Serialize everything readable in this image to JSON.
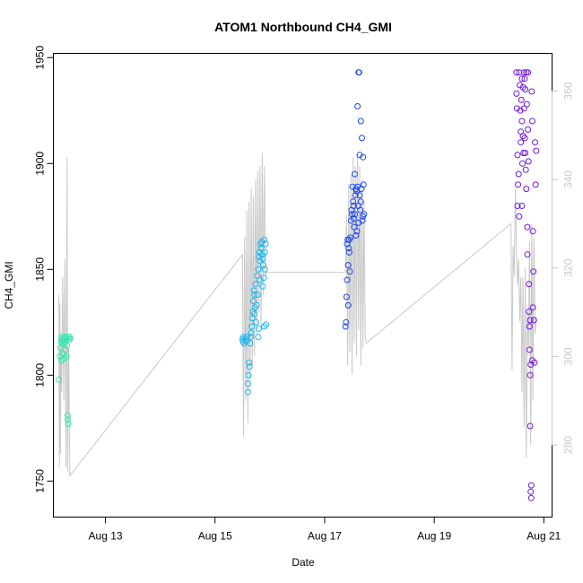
{
  "chart_data": {
    "type": "scatter",
    "title": "ATOM1 Northbound CH4_GMI",
    "xlabel": "Date",
    "ylabel": "CH4_GMI",
    "x_unit": "date (August 2016)",
    "xlim": [
      "Aug 12.05",
      "Aug 21.15"
    ],
    "ylim": [
      1733,
      1952
    ],
    "x_ticks": [
      {
        "value": 13,
        "label": "Aug 13"
      },
      {
        "value": 15,
        "label": "Aug 15"
      },
      {
        "value": 17,
        "label": "Aug 17"
      },
      {
        "value": 19,
        "label": "Aug 19"
      },
      {
        "value": 21,
        "label": "Aug 21"
      }
    ],
    "y_ticks": [
      1750,
      1800,
      1850,
      1900,
      1950
    ],
    "right_axis": {
      "ticks": [
        280,
        300,
        320,
        340,
        360
      ],
      "range": [
        263.7,
        368.5
      ],
      "color": "#c8c8c8"
    },
    "grid": false,
    "legend": "none",
    "colors": {
      "flight1": "#2fe8b0",
      "flight2": "#19b7ef",
      "flight3": "#1c46f0",
      "flight4": "#7118dc",
      "secondary_line": "#c8c8c8"
    },
    "series": [
      {
        "color": "#2fe8b0",
        "points": [
          [
            12.15,
            1798
          ],
          [
            12.17,
            1809
          ],
          [
            12.18,
            1813
          ],
          [
            12.19,
            1816
          ],
          [
            12.2,
            1818
          ],
          [
            12.21,
            1817
          ],
          [
            12.22,
            1815
          ],
          [
            12.23,
            1810
          ],
          [
            12.24,
            1816
          ],
          [
            12.25,
            1815
          ],
          [
            12.26,
            1818
          ],
          [
            12.27,
            1812
          ],
          [
            12.28,
            1817
          ],
          [
            12.29,
            1809
          ],
          [
            12.3,
            1818
          ],
          [
            12.3,
            1814
          ],
          [
            12.31,
            1781
          ],
          [
            12.31,
            1779
          ],
          [
            12.32,
            1777
          ],
          [
            12.33,
            1817
          ],
          [
            12.34,
            1818
          ],
          [
            12.35,
            1818
          ],
          [
            12.36,
            1817
          ],
          [
            12.2,
            1807
          ],
          [
            12.25,
            1808
          ]
        ]
      },
      {
        "color": "#19b7ef",
        "points": [
          [
            15.5,
            1817
          ],
          [
            15.51,
            1816
          ],
          [
            15.52,
            1818
          ],
          [
            15.53,
            1815
          ],
          [
            15.55,
            1817
          ],
          [
            15.57,
            1816
          ],
          [
            15.58,
            1818
          ],
          [
            15.6,
            1792
          ],
          [
            15.6,
            1796
          ],
          [
            15.61,
            1800
          ],
          [
            15.62,
            1806
          ],
          [
            15.63,
            1804
          ],
          [
            15.64,
            1815
          ],
          [
            15.65,
            1818
          ],
          [
            15.66,
            1820
          ],
          [
            15.67,
            1823
          ],
          [
            15.68,
            1827
          ],
          [
            15.69,
            1830
          ],
          [
            15.7,
            1835
          ],
          [
            15.71,
            1840
          ],
          [
            15.72,
            1838
          ],
          [
            15.72,
            1829
          ],
          [
            15.73,
            1832
          ],
          [
            15.74,
            1843
          ],
          [
            15.75,
            1825
          ],
          [
            15.76,
            1833
          ],
          [
            15.77,
            1847
          ],
          [
            15.78,
            1838
          ],
          [
            15.79,
            1850
          ],
          [
            15.79,
            1818
          ],
          [
            15.8,
            1856
          ],
          [
            15.8,
            1822
          ],
          [
            15.81,
            1858
          ],
          [
            15.82,
            1854
          ],
          [
            15.82,
            1845
          ],
          [
            15.83,
            1862
          ],
          [
            15.84,
            1860
          ],
          [
            15.85,
            1863
          ],
          [
            15.86,
            1857
          ],
          [
            15.87,
            1855
          ],
          [
            15.87,
            1842
          ],
          [
            15.88,
            1852
          ],
          [
            15.89,
            1846
          ],
          [
            15.9,
            1864
          ],
          [
            15.9,
            1823
          ],
          [
            15.91,
            1850
          ],
          [
            15.91,
            1858
          ],
          [
            15.92,
            1862
          ],
          [
            15.93,
            1824
          ]
        ]
      },
      {
        "color": "#1c46f0",
        "points": [
          [
            17.38,
            1823
          ],
          [
            17.39,
            1825
          ],
          [
            17.4,
            1837
          ],
          [
            17.41,
            1845
          ],
          [
            17.41,
            1862
          ],
          [
            17.42,
            1864
          ],
          [
            17.43,
            1852
          ],
          [
            17.43,
            1833
          ],
          [
            17.44,
            1860
          ],
          [
            17.45,
            1864
          ],
          [
            17.45,
            1858
          ],
          [
            17.46,
            1849
          ],
          [
            17.47,
            1865
          ],
          [
            17.48,
            1873
          ],
          [
            17.49,
            1878
          ],
          [
            17.5,
            1876
          ],
          [
            17.51,
            1889
          ],
          [
            17.52,
            1882
          ],
          [
            17.53,
            1874
          ],
          [
            17.54,
            1870
          ],
          [
            17.55,
            1876
          ],
          [
            17.56,
            1885
          ],
          [
            17.57,
            1888
          ],
          [
            17.57,
            1866
          ],
          [
            17.58,
            1887
          ],
          [
            17.59,
            1868
          ],
          [
            17.6,
            1889
          ],
          [
            17.61,
            1880
          ],
          [
            17.62,
            1872
          ],
          [
            17.62,
            1943
          ],
          [
            17.63,
            1943
          ],
          [
            17.64,
            1885
          ],
          [
            17.65,
            1878
          ],
          [
            17.66,
            1920
          ],
          [
            17.66,
            1882
          ],
          [
            17.67,
            1888
          ],
          [
            17.68,
            1912
          ],
          [
            17.69,
            1873
          ],
          [
            17.7,
            1875
          ],
          [
            17.7,
            1903
          ],
          [
            17.71,
            1890
          ],
          [
            17.72,
            1876
          ],
          [
            17.53,
            1880
          ],
          [
            17.55,
            1895
          ],
          [
            17.6,
            1927
          ],
          [
            17.64,
            1904
          ]
        ]
      },
      {
        "color": "#7118dc",
        "points": [
          [
            20.5,
            1943
          ],
          [
            20.5,
            1933
          ],
          [
            20.51,
            1926
          ],
          [
            20.52,
            1904
          ],
          [
            20.52,
            1880
          ],
          [
            20.53,
            1890
          ],
          [
            20.54,
            1895
          ],
          [
            20.55,
            1875
          ],
          [
            20.55,
            1943
          ],
          [
            20.56,
            1937
          ],
          [
            20.57,
            1925
          ],
          [
            20.58,
            1910
          ],
          [
            20.58,
            1915
          ],
          [
            20.59,
            1930
          ],
          [
            20.6,
            1920
          ],
          [
            20.6,
            1940
          ],
          [
            20.61,
            1900
          ],
          [
            20.62,
            1913
          ],
          [
            20.62,
            1936
          ],
          [
            20.63,
            1905
          ],
          [
            20.64,
            1926
          ],
          [
            20.64,
            1943
          ],
          [
            20.65,
            1940
          ],
          [
            20.66,
            1935
          ],
          [
            20.66,
            1905
          ],
          [
            20.67,
            1897
          ],
          [
            20.68,
            1888
          ],
          [
            20.68,
            1943
          ],
          [
            20.69,
            1928
          ],
          [
            20.7,
            1870
          ],
          [
            20.7,
            1857
          ],
          [
            20.71,
            1916
          ],
          [
            20.71,
            1943
          ],
          [
            20.72,
            1901
          ],
          [
            20.73,
            1830
          ],
          [
            20.73,
            1843
          ],
          [
            20.74,
            1823
          ],
          [
            20.74,
            1812
          ],
          [
            20.75,
            1800
          ],
          [
            20.75,
            1776
          ],
          [
            20.76,
            1805
          ],
          [
            20.76,
            1745
          ],
          [
            20.77,
            1748
          ],
          [
            20.77,
            1742
          ],
          [
            20.78,
            1934
          ],
          [
            20.79,
            1920
          ],
          [
            20.8,
            1868
          ],
          [
            20.8,
            1832
          ],
          [
            20.81,
            1849
          ],
          [
            20.82,
            1826
          ],
          [
            20.83,
            1806
          ],
          [
            20.84,
            1910
          ],
          [
            20.85,
            1890
          ],
          [
            20.86,
            1906
          ],
          [
            20.6,
            1880
          ],
          [
            20.65,
            1912
          ],
          [
            20.75,
            1826
          ],
          [
            20.79,
            1807
          ]
        ]
      }
    ],
    "secondary_series": {
      "color": "#c8c8c8",
      "points": [
        [
          12.15,
          314
        ],
        [
          12.16,
          275
        ],
        [
          12.17,
          312
        ],
        [
          12.18,
          278
        ],
        [
          12.19,
          305
        ],
        [
          12.2,
          292
        ],
        [
          12.22,
          318
        ],
        [
          12.24,
          290
        ],
        [
          12.26,
          322
        ],
        [
          12.28,
          275
        ],
        [
          12.3,
          345
        ],
        [
          12.31,
          274
        ],
        [
          12.33,
          302
        ],
        [
          12.35,
          273
        ],
        [
          15.5,
          323
        ],
        [
          15.52,
          282
        ],
        [
          15.54,
          327
        ],
        [
          15.56,
          290
        ],
        [
          15.58,
          333
        ],
        [
          15.6,
          285
        ],
        [
          15.62,
          335
        ],
        [
          15.64,
          292
        ],
        [
          15.66,
          338
        ],
        [
          15.68,
          298
        ],
        [
          15.7,
          336
        ],
        [
          15.72,
          300
        ],
        [
          15.74,
          340
        ],
        [
          15.76,
          305
        ],
        [
          15.78,
          342
        ],
        [
          15.8,
          310
        ],
        [
          15.82,
          343
        ],
        [
          15.84,
          306
        ],
        [
          15.86,
          346
        ],
        [
          15.88,
          314
        ],
        [
          15.9,
          343
        ],
        [
          15.92,
          318
        ],
        [
          15.94,
          319
        ],
        [
          17.38,
          319
        ],
        [
          17.4,
          332
        ],
        [
          17.42,
          298
        ],
        [
          17.44,
          339
        ],
        [
          17.46,
          301
        ],
        [
          17.48,
          341
        ],
        [
          17.5,
          296
        ],
        [
          17.52,
          345
        ],
        [
          17.54,
          303
        ],
        [
          17.56,
          343
        ],
        [
          17.58,
          300
        ],
        [
          17.6,
          346
        ],
        [
          17.62,
          306
        ],
        [
          17.64,
          343
        ],
        [
          17.66,
          298
        ],
        [
          17.68,
          340
        ],
        [
          17.7,
          302
        ],
        [
          17.72,
          335
        ],
        [
          17.74,
          305
        ],
        [
          17.76,
          303
        ],
        [
          20.4,
          330
        ],
        [
          20.42,
          297
        ],
        [
          20.44,
          325
        ],
        [
          20.46,
          318
        ],
        [
          20.48,
          338
        ],
        [
          20.5,
          324
        ],
        [
          20.52,
          316
        ],
        [
          20.54,
          322
        ],
        [
          20.56,
          308
        ],
        [
          20.58,
          318
        ],
        [
          20.6,
          292
        ],
        [
          20.62,
          318
        ],
        [
          20.64,
          284
        ],
        [
          20.66,
          320
        ],
        [
          20.68,
          277
        ],
        [
          20.7,
          310
        ],
        [
          20.72,
          302
        ],
        [
          20.74,
          326
        ],
        [
          20.76,
          280
        ],
        [
          20.78,
          330
        ],
        [
          20.8,
          290
        ],
        [
          20.82,
          327
        ],
        [
          20.84,
          305
        ],
        [
          20.86,
          309
        ]
      ]
    }
  }
}
